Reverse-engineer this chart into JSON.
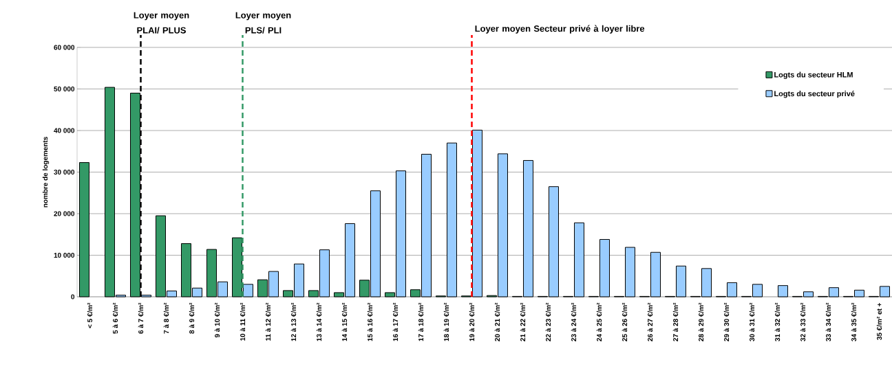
{
  "chart_data": {
    "type": "bar",
    "ylabel": "nombre de logements",
    "categories": [
      "< 5 €/m²",
      "5 à 6 €/m²",
      "6 à 7 €/m²",
      "7 à 8 €/m²",
      "8 à 9 €/m²",
      "9 à 10 €/m²",
      "10 à 11 €/m²",
      "11 à 12 €/m²",
      "12 à 13 €/m²",
      "13 à 14 €/m²",
      "14 à 15 €/m²",
      "15 à 16 €/m²",
      "16 à 17 €/m²",
      "17 à 18 €/m²",
      "18 à 19 €/m²",
      "19 à 20 €/m²",
      "20 à 21 €/m²",
      "21 à 22 €/m²",
      "22 à 23 €/m²",
      "23 à 24 €/m²",
      "24 à 25 €/m²",
      "25 à 26 €/m²",
      "26 à 27 €/m²",
      "27 à 28 €/m²",
      "28 à 29 €/m²",
      "29 à 30 €/m²",
      "30 à 31 €/m²",
      "31 à 32 €/m²",
      "32 à 33 €/m²",
      "33 à 34 €/m²",
      "34 à 35 €/m²",
      "35 €/m² et +"
    ],
    "series": [
      {
        "name": "Logts du secteur HLM",
        "color": "#339966",
        "values": [
          32300,
          50400,
          49000,
          19500,
          12800,
          11400,
          14200,
          4100,
          1500,
          1500,
          1000,
          4000,
          1000,
          1700,
          200,
          200,
          300,
          100,
          100,
          100,
          100,
          100,
          100,
          100,
          100,
          100,
          100,
          null,
          100,
          100,
          100,
          100
        ]
      },
      {
        "name": "Logts du secteur privé",
        "color": "#99ccff",
        "values": [
          null,
          400,
          400,
          1400,
          2100,
          3600,
          3000,
          6100,
          7900,
          11300,
          17600,
          25500,
          30300,
          34300,
          37000,
          40100,
          34400,
          32800,
          26500,
          17800,
          13800,
          11900,
          10700,
          7400,
          6800,
          3400,
          3000,
          2700,
          1200,
          2200,
          1600,
          2500
        ]
      }
    ],
    "ylim": [
      0,
      60000
    ],
    "yticks": [
      {
        "value": 0,
        "label": "0"
      },
      {
        "value": 10000,
        "label": "10 000"
      },
      {
        "value": 20000,
        "label": "20 000"
      },
      {
        "value": 30000,
        "label": "30 000"
      },
      {
        "value": 40000,
        "label": "40 000"
      },
      {
        "value": 50000,
        "label": "50 000"
      },
      {
        "value": 60000,
        "label": "60 000"
      }
    ],
    "grid": "y",
    "legend": "top right",
    "ref_lines": [
      {
        "axis": "x",
        "value": "6 à 7 €/m²",
        "label": "Loyer moyen PLAI/ PLUS",
        "color": "#000000",
        "line_style": "dashed"
      },
      {
        "axis": "x",
        "value": "10 à 11 €/m²",
        "label": "Loyer moyen PLS/ PLI",
        "color": "#339966",
        "line_style": "dashed"
      },
      {
        "axis": "x",
        "value": "19 à 20 €/m²",
        "label": "Loyer moyen Secteur privé à loyer libre",
        "color": "#ff0000",
        "line_style": "dashed"
      }
    ]
  }
}
